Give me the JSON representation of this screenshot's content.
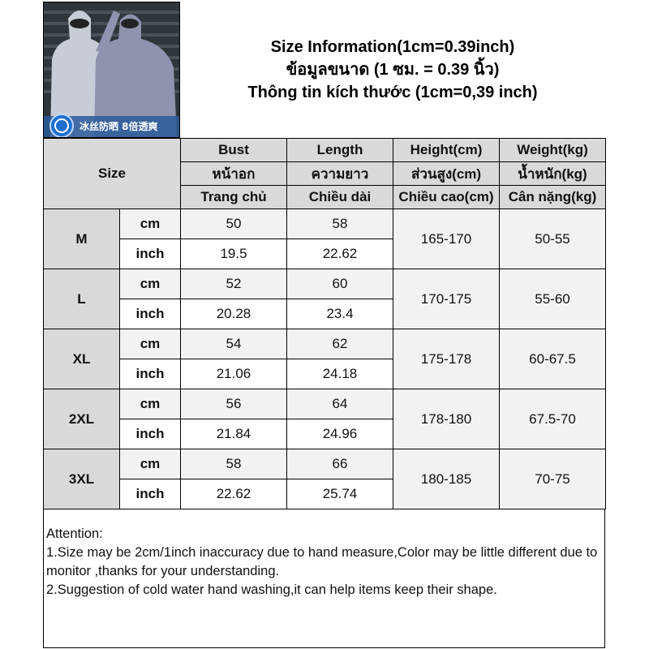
{
  "photo": {
    "banner_text": "冰丝防晒 8倍透爽",
    "accent": "#1e6fd0"
  },
  "title": {
    "line1": "Size Information(1cm=0.39inch)",
    "line2": "ข้อมูลขนาด (1 ซม. = 0.39 นิ้ว)",
    "line3": "Thông tin kích thước (1cm=0,39 inch)"
  },
  "table": {
    "size_label": "Size",
    "columns": [
      {
        "en": "Bust",
        "th": "หน้าอก",
        "vi": "Trang chủ"
      },
      {
        "en": "Length",
        "th": "ความยาว",
        "vi": "Chiều dài"
      },
      {
        "en": "Height(cm)",
        "th": "ส่วนสูง(cm)",
        "vi": "Chiều cao(cm)"
      },
      {
        "en": "Weight(kg)",
        "th": "น้ำหนัก(kg)",
        "vi": "Cân nặng(kg)"
      }
    ],
    "units": {
      "cm": "cm",
      "inch": "inch"
    },
    "rows": [
      {
        "size": "M",
        "bust_cm": "50",
        "length_cm": "58",
        "bust_in": "19.5",
        "length_in": "22.62",
        "height": "165-170",
        "weight": "50-55"
      },
      {
        "size": "L",
        "bust_cm": "52",
        "length_cm": "60",
        "bust_in": "20.28",
        "length_in": "23.4",
        "height": "170-175",
        "weight": "55-60"
      },
      {
        "size": "XL",
        "bust_cm": "54",
        "length_cm": "62",
        "bust_in": "21.06",
        "length_in": "24.18",
        "height": "175-178",
        "weight": "60-67.5"
      },
      {
        "size": "2XL",
        "bust_cm": "56",
        "length_cm": "64",
        "bust_in": "21.84",
        "length_in": "24.96",
        "height": "178-180",
        "weight": "67.5-70"
      },
      {
        "size": "3XL",
        "bust_cm": "58",
        "length_cm": "66",
        "bust_in": "22.62",
        "length_in": "25.74",
        "height": "180-185",
        "weight": "70-75"
      }
    ]
  },
  "attention": {
    "heading": "Attention:",
    "line1": "1.Size may be 2cm/1inch inaccuracy due to hand measure,Color may be little different due to monitor ,thanks for your understanding.",
    "line2": "2.Suggestion of cold water hand washing,it can help items keep their shape."
  }
}
